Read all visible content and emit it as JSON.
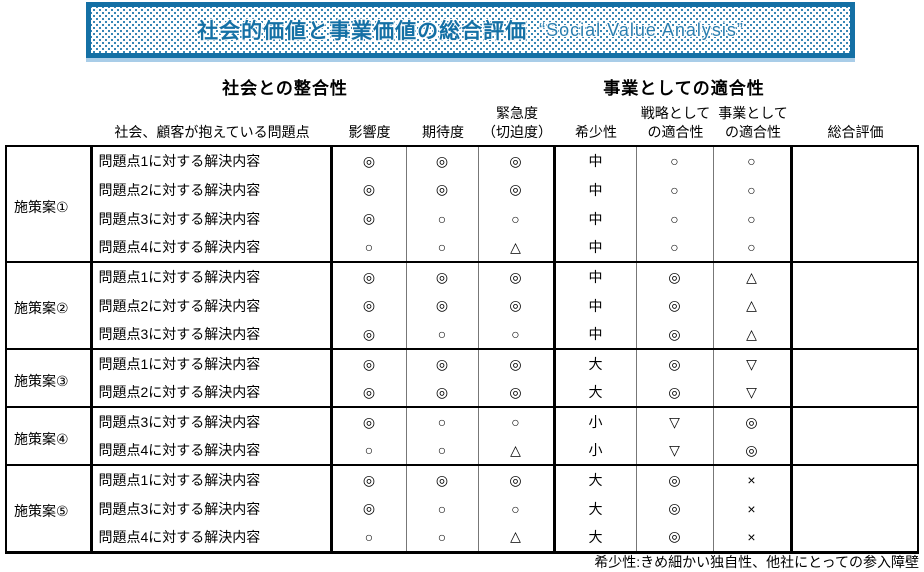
{
  "banner": {
    "title_jp": "社会的価値と事業価値の総合評価",
    "title_en": "“Social Value Analysis”"
  },
  "section_headers": {
    "social": "社会との整合性",
    "business": "事業としての適合性"
  },
  "table": {
    "columns": [
      {
        "id": "problems",
        "lines": [
          "社会、顧客が抱えている問題点"
        ]
      },
      {
        "id": "impact",
        "lines": [
          "影響度"
        ]
      },
      {
        "id": "expectation",
        "lines": [
          "期待度"
        ]
      },
      {
        "id": "urgency",
        "lines": [
          "緊急度",
          "（切迫度）"
        ]
      },
      {
        "id": "scarcity",
        "lines": [
          "希少性"
        ]
      },
      {
        "id": "strategy-fit",
        "lines": [
          "戦略として",
          "の適合性"
        ]
      },
      {
        "id": "business-fit",
        "lines": [
          "事業として",
          "の適合性"
        ]
      },
      {
        "id": "overall",
        "lines": [
          "総合評価"
        ]
      }
    ],
    "groups": [
      {
        "label": "施策案①",
        "overall": "",
        "rows": [
          {
            "problem": "問題点1に対する解決内容",
            "impact": "◎",
            "expectation": "◎",
            "urgency": "◎",
            "scarcity": "中",
            "strategy_fit": "○",
            "business_fit": "○"
          },
          {
            "problem": "問題点2に対する解決内容",
            "impact": "◎",
            "expectation": "◎",
            "urgency": "◎",
            "scarcity": "中",
            "strategy_fit": "○",
            "business_fit": "○"
          },
          {
            "problem": "問題点3に対する解決内容",
            "impact": "◎",
            "expectation": "○",
            "urgency": "○",
            "scarcity": "中",
            "strategy_fit": "○",
            "business_fit": "○"
          },
          {
            "problem": "問題点4に対する解決内容",
            "impact": "○",
            "expectation": "○",
            "urgency": "△",
            "scarcity": "中",
            "strategy_fit": "○",
            "business_fit": "○"
          }
        ]
      },
      {
        "label": "施策案②",
        "overall": "",
        "rows": [
          {
            "problem": "問題点1に対する解決内容",
            "impact": "◎",
            "expectation": "◎",
            "urgency": "◎",
            "scarcity": "中",
            "strategy_fit": "◎",
            "business_fit": "△"
          },
          {
            "problem": "問題点2に対する解決内容",
            "impact": "◎",
            "expectation": "◎",
            "urgency": "◎",
            "scarcity": "中",
            "strategy_fit": "◎",
            "business_fit": "△"
          },
          {
            "problem": "問題点3に対する解決内容",
            "impact": "◎",
            "expectation": "○",
            "urgency": "○",
            "scarcity": "中",
            "strategy_fit": "◎",
            "business_fit": "△"
          }
        ]
      },
      {
        "label": "施策案③",
        "overall": "",
        "rows": [
          {
            "problem": "問題点1に対する解決内容",
            "impact": "◎",
            "expectation": "◎",
            "urgency": "◎",
            "scarcity": "大",
            "strategy_fit": "◎",
            "business_fit": "▽"
          },
          {
            "problem": "問題点2に対する解決内容",
            "impact": "◎",
            "expectation": "◎",
            "urgency": "◎",
            "scarcity": "大",
            "strategy_fit": "◎",
            "business_fit": "▽"
          }
        ]
      },
      {
        "label": "施策案④",
        "overall": "",
        "rows": [
          {
            "problem": "問題点3に対する解決内容",
            "impact": "◎",
            "expectation": "○",
            "urgency": "○",
            "scarcity": "小",
            "strategy_fit": "▽",
            "business_fit": "◎"
          },
          {
            "problem": "問題点4に対する解決内容",
            "impact": "○",
            "expectation": "○",
            "urgency": "△",
            "scarcity": "小",
            "strategy_fit": "▽",
            "business_fit": "◎"
          }
        ]
      },
      {
        "label": "施策案⑤",
        "overall": "",
        "rows": [
          {
            "problem": "問題点1に対する解決内容",
            "impact": "◎",
            "expectation": "◎",
            "urgency": "◎",
            "scarcity": "大",
            "strategy_fit": "◎",
            "business_fit": "×"
          },
          {
            "problem": "問題点3に対する解決内容",
            "impact": "◎",
            "expectation": "○",
            "urgency": "○",
            "scarcity": "大",
            "strategy_fit": "◎",
            "business_fit": "×"
          },
          {
            "problem": "問題点4に対する解決内容",
            "impact": "○",
            "expectation": "○",
            "urgency": "△",
            "scarcity": "大",
            "strategy_fit": "◎",
            "business_fit": "×"
          }
        ]
      }
    ]
  },
  "footnote": "希少性:きめ細かい独自性、他社にとっての参入障壁",
  "colors": {
    "accent_blue": "#1470a5",
    "banner_shadow_blue": "#a9cde8",
    "grid_black": "#000000",
    "grid_thin_gray": "#777777"
  }
}
